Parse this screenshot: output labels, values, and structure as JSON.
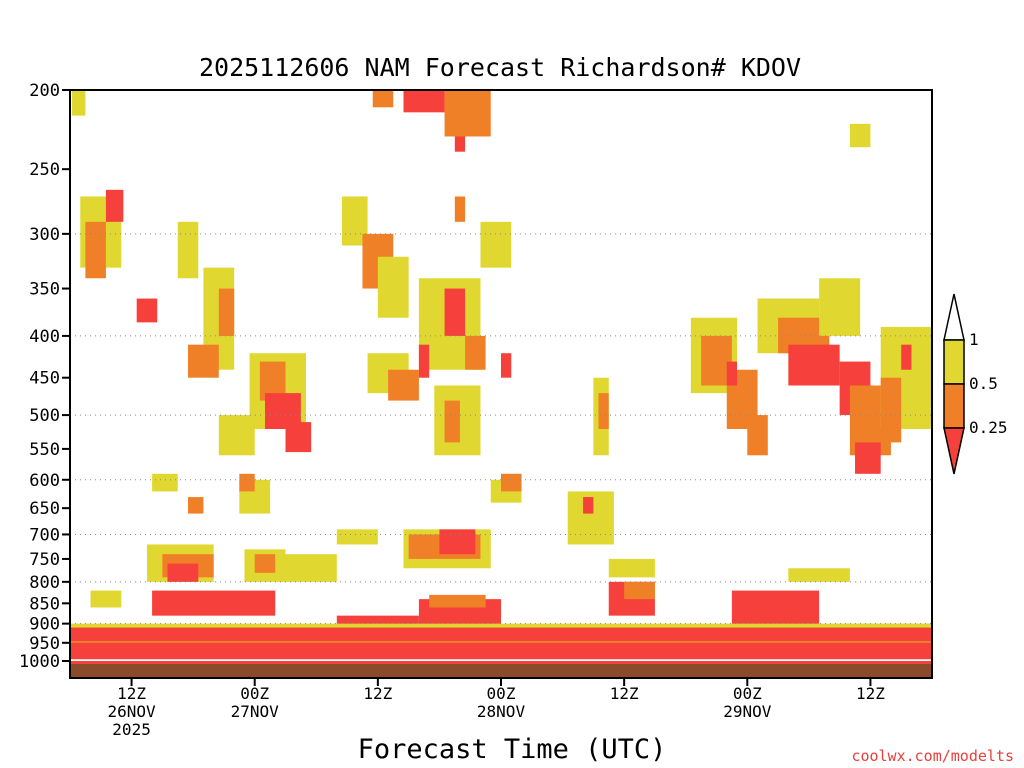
{
  "chart_data": {
    "type": "heatmap",
    "title": "2025112606 NAM Forecast Richardson# KDOV",
    "xlabel": "Forecast Time (UTC)",
    "ylabel": "",
    "credit": "coolwx.com/modelts",
    "y_axis": {
      "scale": "pressure (log, inverted)",
      "range": [
        1000,
        200
      ],
      "ticks": [
        "200",
        "250",
        "300",
        "350",
        "400",
        "450",
        "500",
        "550",
        "600",
        "650",
        "700",
        "750",
        "800",
        "850",
        "900",
        "950",
        "1000"
      ],
      "dotted_gridlines": [
        "300",
        "400",
        "500",
        "600",
        "700",
        "800",
        "900"
      ]
    },
    "x_axis": {
      "range_hours": [
        0,
        84
      ],
      "ticks": [
        {
          "hour": 6,
          "line1": "12Z",
          "line2": "26NOV",
          "line3": "2025"
        },
        {
          "hour": 18,
          "line1": "00Z",
          "line2": "27NOV",
          "line3": ""
        },
        {
          "hour": 30,
          "line1": "12Z",
          "line2": "",
          "line3": ""
        },
        {
          "hour": 42,
          "line1": "00Z",
          "line2": "28NOV",
          "line3": ""
        },
        {
          "hour": 54,
          "line1": "12Z",
          "line2": "",
          "line3": ""
        },
        {
          "hour": 66,
          "line1": "00Z",
          "line2": "29NOV",
          "line3": ""
        },
        {
          "hour": 78,
          "line1": "12Z",
          "line2": "",
          "line3": ""
        }
      ]
    },
    "colorbar": {
      "levels": [
        "1",
        "0.5",
        "0.25"
      ],
      "colors": {
        "above_1": "#ffffff",
        "0.5_to_1": "#e0d831",
        "0.25_to_0.5": "#f08028",
        "below_0.25": "#f5403c"
      }
    },
    "ground_color": "#8b4a2a",
    "regions": [
      {
        "class": "yellow",
        "t": [
          0.2,
          1.5
        ],
        "p": [
          200,
          215
        ]
      },
      {
        "class": "orange",
        "t": [
          29.5,
          31.5
        ],
        "p": [
          200,
          210
        ]
      },
      {
        "class": "red",
        "t": [
          32.5,
          36.5
        ],
        "p": [
          200,
          213
        ]
      },
      {
        "class": "orange",
        "t": [
          36.5,
          41
        ],
        "p": [
          200,
          228
        ]
      },
      {
        "class": "red",
        "t": [
          37.5,
          38.5
        ],
        "p": [
          228,
          238
        ]
      },
      {
        "class": "yellow",
        "t": [
          76,
          78
        ],
        "p": [
          220,
          235
        ]
      },
      {
        "class": "yellow",
        "t": [
          1,
          5
        ],
        "p": [
          270,
          330
        ]
      },
      {
        "class": "orange",
        "t": [
          1.5,
          3.5
        ],
        "p": [
          290,
          340
        ]
      },
      {
        "class": "red",
        "t": [
          3.5,
          5.2
        ],
        "p": [
          265,
          290
        ]
      },
      {
        "class": "yellow",
        "t": [
          10.5,
          12.5
        ],
        "p": [
          290,
          340
        ]
      },
      {
        "class": "yellow",
        "t": [
          13,
          16
        ],
        "p": [
          330,
          440
        ]
      },
      {
        "class": "orange",
        "t": [
          14.5,
          16
        ],
        "p": [
          350,
          400
        ]
      },
      {
        "class": "orange",
        "t": [
          11.5,
          14.5
        ],
        "p": [
          410,
          450
        ]
      },
      {
        "class": "red",
        "t": [
          6.5,
          8.5
        ],
        "p": [
          360,
          385
        ]
      },
      {
        "class": "yellow",
        "t": [
          26.5,
          29
        ],
        "p": [
          270,
          310
        ]
      },
      {
        "class": "orange",
        "t": [
          28.5,
          31.5
        ],
        "p": [
          300,
          350
        ]
      },
      {
        "class": "yellow",
        "t": [
          30,
          33
        ],
        "p": [
          320,
          380
        ]
      },
      {
        "class": "yellow",
        "t": [
          34,
          40
        ],
        "p": [
          340,
          440
        ]
      },
      {
        "class": "red",
        "t": [
          36.5,
          38.5
        ],
        "p": [
          350,
          400
        ]
      },
      {
        "class": "orange",
        "t": [
          38.5,
          40.5
        ],
        "p": [
          400,
          440
        ]
      },
      {
        "class": "yellow",
        "t": [
          40,
          43
        ],
        "p": [
          290,
          330
        ]
      },
      {
        "class": "orange",
        "t": [
          37.5,
          38.5
        ],
        "p": [
          270,
          290
        ]
      },
      {
        "class": "yellow",
        "t": [
          29,
          33
        ],
        "p": [
          420,
          470
        ]
      },
      {
        "class": "orange",
        "t": [
          31,
          34
        ],
        "p": [
          440,
          480
        ]
      },
      {
        "class": "red",
        "t": [
          34,
          35
        ],
        "p": [
          410,
          450
        ]
      },
      {
        "class": "yellow",
        "t": [
          17.5,
          23
        ],
        "p": [
          420,
          520
        ]
      },
      {
        "class": "orange",
        "t": [
          18.5,
          21
        ],
        "p": [
          430,
          480
        ]
      },
      {
        "class": "red",
        "t": [
          19,
          22.5
        ],
        "p": [
          470,
          520
        ]
      },
      {
        "class": "red",
        "t": [
          21,
          23.5
        ],
        "p": [
          510,
          555
        ]
      },
      {
        "class": "yellow",
        "t": [
          14.5,
          18
        ],
        "p": [
          500,
          560
        ]
      },
      {
        "class": "yellow",
        "t": [
          35.5,
          40
        ],
        "p": [
          460,
          560
        ]
      },
      {
        "class": "orange",
        "t": [
          36.5,
          38
        ],
        "p": [
          480,
          540
        ]
      },
      {
        "class": "red",
        "t": [
          42,
          43
        ],
        "p": [
          420,
          450
        ]
      },
      {
        "class": "yellow",
        "t": [
          51,
          52.5
        ],
        "p": [
          450,
          560
        ]
      },
      {
        "class": "orange",
        "t": [
          51.5,
          52.5
        ],
        "p": [
          470,
          520
        ]
      },
      {
        "class": "yellow",
        "t": [
          60.5,
          65
        ],
        "p": [
          380,
          470
        ]
      },
      {
        "class": "orange",
        "t": [
          61.5,
          64.5
        ],
        "p": [
          400,
          460
        ]
      },
      {
        "class": "orange",
        "t": [
          64,
          67
        ],
        "p": [
          440,
          520
        ]
      },
      {
        "class": "red",
        "t": [
          64,
          65
        ],
        "p": [
          430,
          460
        ]
      },
      {
        "class": "orange",
        "t": [
          66,
          68
        ],
        "p": [
          500,
          560
        ]
      },
      {
        "class": "yellow",
        "t": [
          67,
          73
        ],
        "p": [
          360,
          420
        ]
      },
      {
        "class": "orange",
        "t": [
          69,
          74
        ],
        "p": [
          380,
          420
        ]
      },
      {
        "class": "red",
        "t": [
          70,
          75
        ],
        "p": [
          410,
          460
        ]
      },
      {
        "class": "yellow",
        "t": [
          73,
          77
        ],
        "p": [
          340,
          400
        ]
      },
      {
        "class": "red",
        "t": [
          75,
          78
        ],
        "p": [
          430,
          500
        ]
      },
      {
        "class": "orange",
        "t": [
          76,
          80
        ],
        "p": [
          460,
          560
        ]
      },
      {
        "class": "red",
        "t": [
          76.5,
          79
        ],
        "p": [
          540,
          590
        ]
      },
      {
        "class": "yellow",
        "t": [
          79,
          84
        ],
        "p": [
          390,
          520
        ]
      },
      {
        "class": "orange",
        "t": [
          79,
          81
        ],
        "p": [
          450,
          540
        ]
      },
      {
        "class": "red",
        "t": [
          81,
          82
        ],
        "p": [
          410,
          440
        ]
      },
      {
        "class": "yellow",
        "t": [
          8,
          10.5
        ],
        "p": [
          590,
          620
        ]
      },
      {
        "class": "orange",
        "t": [
          11.5,
          13
        ],
        "p": [
          630,
          660
        ]
      },
      {
        "class": "yellow",
        "t": [
          16.5,
          19.5
        ],
        "p": [
          600,
          660
        ]
      },
      {
        "class": "orange",
        "t": [
          16.5,
          18
        ],
        "p": [
          590,
          620
        ]
      },
      {
        "class": "yellow",
        "t": [
          41,
          44
        ],
        "p": [
          600,
          640
        ]
      },
      {
        "class": "orange",
        "t": [
          42,
          44
        ],
        "p": [
          590,
          620
        ]
      },
      {
        "class": "yellow",
        "t": [
          48.5,
          53
        ],
        "p": [
          620,
          720
        ]
      },
      {
        "class": "red",
        "t": [
          50,
          51
        ],
        "p": [
          630,
          660
        ]
      },
      {
        "class": "yellow",
        "t": [
          32.5,
          41
        ],
        "p": [
          690,
          770
        ]
      },
      {
        "class": "orange",
        "t": [
          33,
          40
        ],
        "p": [
          700,
          750
        ]
      },
      {
        "class": "red",
        "t": [
          36,
          39.5
        ],
        "p": [
          690,
          740
        ]
      },
      {
        "class": "yellow",
        "t": [
          26,
          30
        ],
        "p": [
          690,
          720
        ]
      },
      {
        "class": "yellow",
        "t": [
          7.5,
          14
        ],
        "p": [
          720,
          800
        ]
      },
      {
        "class": "orange",
        "t": [
          9,
          14
        ],
        "p": [
          740,
          790
        ]
      },
      {
        "class": "red",
        "t": [
          9.5,
          12.5
        ],
        "p": [
          760,
          800
        ]
      },
      {
        "class": "yellow",
        "t": [
          17,
          21
        ],
        "p": [
          730,
          800
        ]
      },
      {
        "class": "orange",
        "t": [
          18,
          20
        ],
        "p": [
          740,
          780
        ]
      },
      {
        "class": "yellow",
        "t": [
          21,
          26
        ],
        "p": [
          740,
          800
        ]
      },
      {
        "class": "yellow",
        "t": [
          70,
          76
        ],
        "p": [
          770,
          800
        ]
      },
      {
        "class": "yellow",
        "t": [
          52.5,
          57
        ],
        "p": [
          750,
          790
        ]
      },
      {
        "class": "red",
        "t": [
          52.5,
          57
        ],
        "p": [
          800,
          880
        ]
      },
      {
        "class": "orange",
        "t": [
          54,
          57
        ],
        "p": [
          800,
          840
        ]
      },
      {
        "class": "red",
        "t": [
          64.5,
          73
        ],
        "p": [
          820,
          940
        ]
      },
      {
        "class": "red",
        "t": [
          34,
          42
        ],
        "p": [
          840,
          920
        ]
      },
      {
        "class": "orange",
        "t": [
          35,
          40.5
        ],
        "p": [
          830,
          860
        ]
      },
      {
        "class": "red",
        "t": [
          26,
          34
        ],
        "p": [
          880,
          960
        ]
      },
      {
        "class": "yellow",
        "t": [
          2,
          5
        ],
        "p": [
          820,
          860
        ]
      },
      {
        "class": "red",
        "t": [
          8,
          20
        ],
        "p": [
          820,
          880
        ]
      },
      {
        "class": "yellow",
        "t": [
          74,
          84
        ],
        "p": [
          900,
          950
        ]
      },
      {
        "class": "red",
        "t": [
          0,
          84
        ],
        "p": [
          945,
          995
        ]
      },
      {
        "class": "orange",
        "t": [
          0,
          84
        ],
        "p": [
          940,
          950
        ]
      },
      {
        "class": "red",
        "t": [
          0,
          84
        ],
        "p": [
          905,
          945
        ]
      },
      {
        "class": "yellow",
        "t": [
          0,
          84
        ],
        "p": [
          900,
          910
        ]
      },
      {
        "class": "red",
        "t": [
          0,
          84
        ],
        "p": [
          1000,
          1015
        ]
      }
    ]
  }
}
